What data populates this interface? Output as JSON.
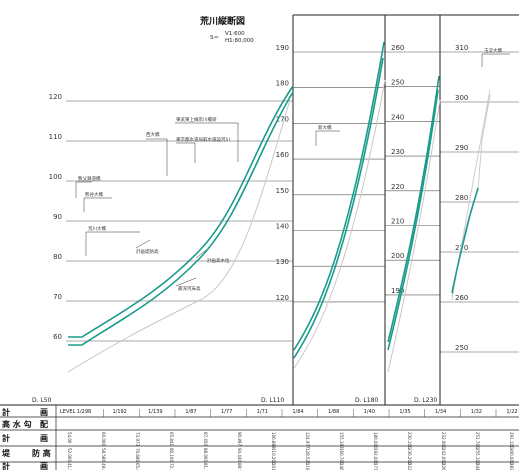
{
  "title": "荒川縦断図",
  "scale": {
    "s": "S＝",
    "v": "V1:600",
    "h": "H1:80,000"
  },
  "panels": [
    {
      "ticks": [
        "120",
        "110",
        "100",
        "90",
        "80",
        "70",
        "60"
      ],
      "dl": "D. L50"
    },
    {
      "ticks": [
        "190",
        "180",
        "170",
        "160",
        "150",
        "140",
        "130",
        "120"
      ],
      "dl": "D. L110"
    },
    {
      "ticks": [
        "260",
        "250",
        "240",
        "230",
        "220",
        "210",
        "200",
        "190"
      ],
      "dl": "D. L180"
    },
    {
      "ticks": [
        "310",
        "300",
        "290",
        "280",
        "270",
        "260",
        "250"
      ],
      "dl": "D. L230"
    }
  ],
  "annotations": [
    "秩父鉄道橋",
    "西大橋",
    "東京都水道局取水施設河川",
    "東武東上線荒川橋梁",
    "熊谷大橋",
    "荒川大橋",
    "計画堤防高",
    "計画高水位",
    "最深河床高",
    "新大橋",
    "玉淀大橋"
  ],
  "table": {
    "row_labels": [
      {
        "a": "計",
        "b": "画"
      },
      {
        "a": "高 水 勾",
        "b": "配"
      },
      {
        "a": "計",
        "b": "画"
      },
      {
        "a": "堤",
        "b": "防 高"
      },
      {
        "a": "計",
        "b": "画"
      }
    ],
    "level": "LEVEL",
    "gradients": [
      "1/298",
      "1/192",
      "1/139",
      "1/87",
      "1/77",
      "1/71",
      "1/84",
      "1/88",
      "1/40",
      "1/35",
      "1/34",
      "1/32",
      "1/22"
    ],
    "values_row1": [
      "54.00",
      "60.000",
      "73.973",
      "65.841",
      "87.450",
      "90.897",
      "106.889",
      "124.977",
      "155.183",
      "180.000",
      "230.100",
      "232.900",
      "251.700",
      "291.100"
    ],
    "values_row2": [
      "52.000",
      "58.580",
      "70.680",
      "80.100",
      "88.000",
      "94.440",
      "110.200",
      "128.520",
      "160.700",
      "192.000",
      "236.200",
      "242.000",
      "255.100",
      "300.000"
    ],
    "values_row3": [
      "41.560",
      "49.800",
      "65.850",
      "72.390",
      "81.710",
      "88.540",
      "101.400",
      "118.200",
      "146.800",
      "177.100",
      "222.400",
      "226.300",
      "244.800",
      "283.200"
    ]
  }
}
